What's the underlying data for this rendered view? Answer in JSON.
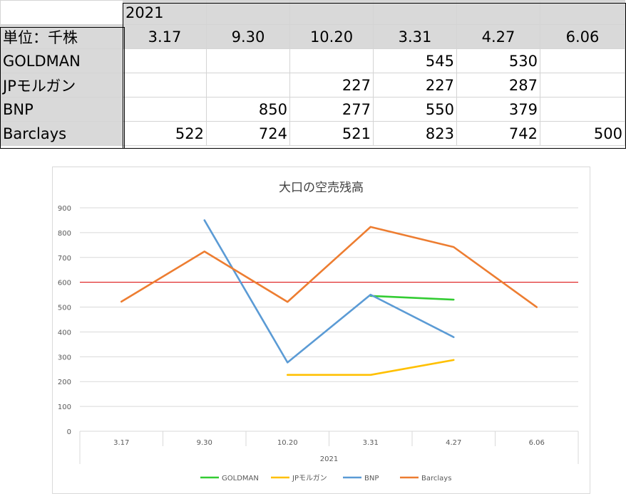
{
  "table": {
    "year": "2021",
    "unit_label": "単位：千株",
    "dates": [
      "3.17",
      "9.30",
      "10.20",
      "3.31",
      "4.27",
      "6.06"
    ],
    "rows": [
      {
        "name": "GOLDMAN",
        "values": [
          "",
          "",
          "",
          "545",
          "530",
          ""
        ]
      },
      {
        "name": "JPモルガン",
        "values": [
          "",
          "",
          "227",
          "227",
          "287",
          ""
        ]
      },
      {
        "name": "BNP",
        "values": [
          "",
          "850",
          "277",
          "550",
          "379",
          ""
        ]
      },
      {
        "name": "Barclays",
        "values": [
          "522",
          "724",
          "521",
          "823",
          "742",
          "500"
        ]
      }
    ]
  },
  "chart_data": {
    "type": "line",
    "title": "大口の空売残高",
    "xlabel": "2021",
    "ylabel": "",
    "categories": [
      "3.17",
      "9.30",
      "10.20",
      "3.31",
      "4.27",
      "6.06"
    ],
    "ylim": [
      0,
      900
    ],
    "yticks": [
      0,
      100,
      200,
      300,
      400,
      500,
      600,
      700,
      800,
      900
    ],
    "grid": true,
    "legend_position": "bottom",
    "reference_line": {
      "y": 600,
      "color": "#e00000"
    },
    "series": [
      {
        "name": "GOLDMAN",
        "color": "#33cc33",
        "values": [
          null,
          null,
          null,
          545,
          530,
          null
        ]
      },
      {
        "name": "JPモルガン",
        "color": "#ffc000",
        "values": [
          null,
          null,
          227,
          227,
          287,
          null
        ]
      },
      {
        "name": "BNP",
        "color": "#5b9bd5",
        "values": [
          null,
          850,
          277,
          550,
          379,
          null
        ]
      },
      {
        "name": "Barclays",
        "color": "#ed7d31",
        "values": [
          522,
          724,
          521,
          823,
          742,
          500
        ]
      }
    ]
  }
}
